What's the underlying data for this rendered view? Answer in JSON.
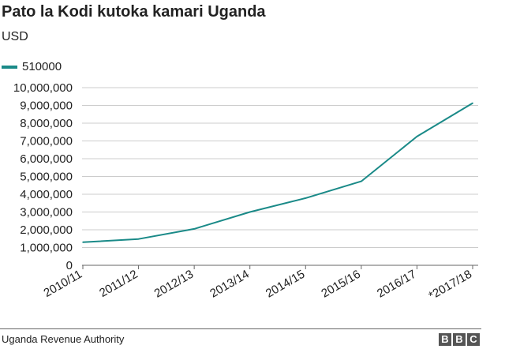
{
  "title": "Pato la Kodi kutoka kamari Uganda",
  "subtitle": "USD",
  "source": "Uganda Revenue Authority",
  "logo_letters": [
    "B",
    "B",
    "C"
  ],
  "colors": {
    "line": "#1a8a88",
    "grid": "#cccccc",
    "axis": "#666666",
    "text": "#222222"
  },
  "chart_data": {
    "type": "line",
    "title": "Pato la Kodi kutoka kamari Uganda",
    "subtitle": "USD",
    "xlabel": "",
    "ylabel": "",
    "categories": [
      "2010/11",
      "2011/12",
      "2012/13",
      "2013/14",
      "2014/15",
      "2015/16",
      "2016/17",
      "*2017/18"
    ],
    "series": [
      {
        "name": "510000",
        "values": [
          1300000,
          1480000,
          2050000,
          3000000,
          3780000,
          4730000,
          7250000,
          9130000
        ]
      }
    ],
    "ylim": [
      0,
      10000000
    ],
    "yticks": [
      0,
      1000000,
      2000000,
      3000000,
      4000000,
      5000000,
      6000000,
      7000000,
      8000000,
      9000000,
      10000000
    ],
    "ytick_labels": [
      "0",
      "1,000,000",
      "2,000,000",
      "3,000,000",
      "4,000,000",
      "5,000,000",
      "6,000,000",
      "7,000,000",
      "8,000,000",
      "9,000,000",
      "10,000,000"
    ],
    "grid": true,
    "legend_position": "top-left"
  }
}
